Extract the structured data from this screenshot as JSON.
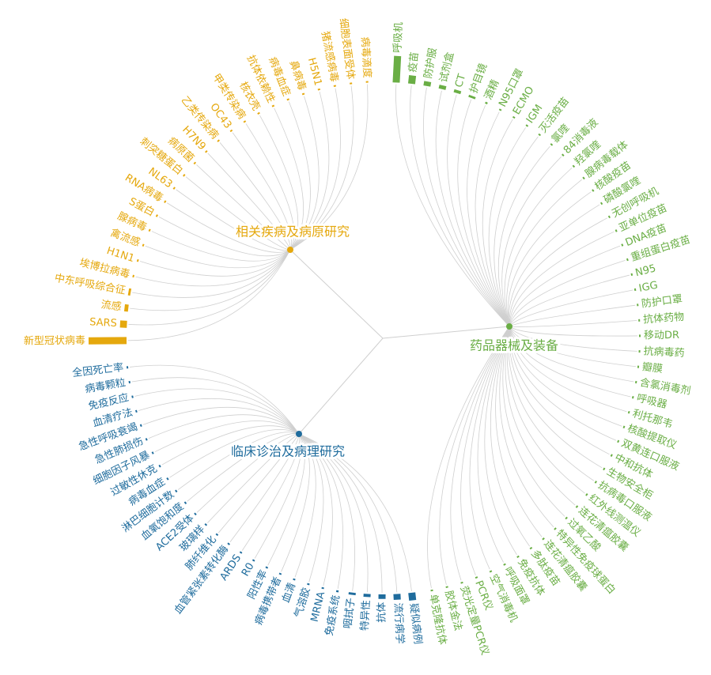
{
  "colors": {
    "gold": "#e5a80d",
    "green": "#6aae45",
    "blue": "#1f6c9d",
    "link": "#cfcfcf"
  },
  "groups": [
    {
      "id": "disease",
      "label": "相关疾病及病原研究",
      "color": "#e5a80d",
      "items": [
        {
          "label": "新型冠状病毒",
          "value": 1.0
        },
        {
          "label": "SARS",
          "value": 0.18
        },
        {
          "label": "流感",
          "value": 0.1
        },
        {
          "label": "中东呼吸综合征",
          "value": 0.06
        },
        {
          "label": "埃博拉病毒",
          "value": 0.03
        },
        {
          "label": "H1N1",
          "value": 0.02
        },
        {
          "label": "禽流感",
          "value": 0.02
        },
        {
          "label": "腺病毒",
          "value": 0.02
        },
        {
          "label": "S蛋白",
          "value": 0.02
        },
        {
          "label": "RNA病毒",
          "value": 0.02
        },
        {
          "label": "NL63",
          "value": 0.02
        },
        {
          "label": "刺突糖蛋白",
          "value": 0.02
        },
        {
          "label": "病原菌",
          "value": 0.02
        },
        {
          "label": "H7N9",
          "value": 0.02
        },
        {
          "label": "乙类传染病",
          "value": 0.02
        },
        {
          "label": "OC43",
          "value": 0.02
        },
        {
          "label": "甲类传染病",
          "value": 0.02
        },
        {
          "label": "核衣壳",
          "value": 0.02
        },
        {
          "label": "抗体依赖性",
          "value": 0.02
        },
        {
          "label": "病毒血症",
          "value": 0.02
        },
        {
          "label": "鼻病毒",
          "value": 0.02
        },
        {
          "label": "H5N1",
          "value": 0.02
        },
        {
          "label": "猪流感病毒",
          "value": 0.02
        },
        {
          "label": "细胞表面受体",
          "value": 0.02
        },
        {
          "label": "病毒滴度",
          "value": 0.02
        }
      ]
    },
    {
      "id": "drugs",
      "label": "药品器械及装备",
      "color": "#6aae45",
      "items": [
        {
          "label": "呼吸机",
          "value": 0.7
        },
        {
          "label": "疫苗",
          "value": 0.22
        },
        {
          "label": "防护服",
          "value": 0.12
        },
        {
          "label": "试剂盒",
          "value": 0.1
        },
        {
          "label": "CT",
          "value": 0.08
        },
        {
          "label": "护目镜",
          "value": 0.06
        },
        {
          "label": "酒精",
          "value": 0.05
        },
        {
          "label": "N95口罩",
          "value": 0.04
        },
        {
          "label": "ECMO",
          "value": 0.04
        },
        {
          "label": "IGM",
          "value": 0.03
        },
        {
          "label": "灭活疫苗",
          "value": 0.03
        },
        {
          "label": "氯喹",
          "value": 0.02
        },
        {
          "label": "84消毒液",
          "value": 0.02
        },
        {
          "label": "羟氯喹",
          "value": 0.02
        },
        {
          "label": "腺病毒载体",
          "value": 0.02
        },
        {
          "label": "核酸疫苗",
          "value": 0.02
        },
        {
          "label": "磷酸氯喹",
          "value": 0.02
        },
        {
          "label": "无创呼吸机",
          "value": 0.02
        },
        {
          "label": "亚单位疫苗",
          "value": 0.02
        },
        {
          "label": "DNA疫苗",
          "value": 0.02
        },
        {
          "label": "重组蛋白疫苗",
          "value": 0.02
        },
        {
          "label": "N95",
          "value": 0.02
        },
        {
          "label": "IGG",
          "value": 0.02
        },
        {
          "label": "防护口罩",
          "value": 0.02
        },
        {
          "label": "抗体药物",
          "value": 0.02
        },
        {
          "label": "移动DR",
          "value": 0.02
        },
        {
          "label": "抗病毒药",
          "value": 0.02
        },
        {
          "label": "瓣膜",
          "value": 0.02
        },
        {
          "label": "含氯消毒剂",
          "value": 0.02
        },
        {
          "label": "呼吸器",
          "value": 0.02
        },
        {
          "label": "利托那韦",
          "value": 0.02
        },
        {
          "label": "核酸提取仪",
          "value": 0.02
        },
        {
          "label": "双黄连口服液",
          "value": 0.02
        },
        {
          "label": "中和抗体",
          "value": 0.02
        },
        {
          "label": "生物安全柜",
          "value": 0.02
        },
        {
          "label": "抗病毒口服液",
          "value": 0.02
        },
        {
          "label": "红外线测温仪",
          "value": 0.02
        },
        {
          "label": "连花清瘟胶囊",
          "value": 0.02
        },
        {
          "label": "过氧乙酸",
          "value": 0.02
        },
        {
          "label": "特异性免疫球蛋白",
          "value": 0.02
        },
        {
          "label": "连花清瘟胶囊",
          "value": 0.02
        },
        {
          "label": "多肽疫苗",
          "value": 0.02
        },
        {
          "label": "免疫抗体",
          "value": 0.02
        },
        {
          "label": "呼吸面罩",
          "value": 0.02
        },
        {
          "label": "空气消毒机",
          "value": 0.02
        },
        {
          "label": "PCR仪",
          "value": 0.02
        },
        {
          "label": "荧光定量PCR仪",
          "value": 0.02
        },
        {
          "label": "胶体金法",
          "value": 0.02
        },
        {
          "label": "单克隆抗体",
          "value": 0.02
        }
      ]
    },
    {
      "id": "clinical",
      "label": "临床诊治及病理研究",
      "color": "#1f6c9d",
      "items": [
        {
          "label": "疑似病例",
          "value": 0.2
        },
        {
          "label": "流行病学",
          "value": 0.15
        },
        {
          "label": "抗体",
          "value": 0.12
        },
        {
          "label": "特异性",
          "value": 0.08
        },
        {
          "label": "咽拭子",
          "value": 0.06
        },
        {
          "label": "免疫系统",
          "value": 0.05
        },
        {
          "label": "MRNA",
          "value": 0.04
        },
        {
          "label": "气溶胶",
          "value": 0.03
        },
        {
          "label": "血清",
          "value": 0.02
        },
        {
          "label": "病毒携带者",
          "value": 0.02
        },
        {
          "label": "阳性率",
          "value": 0.02
        },
        {
          "label": "R0",
          "value": 0.02
        },
        {
          "label": "ARDS",
          "value": 0.02
        },
        {
          "label": "血管紧张素转化酶",
          "value": 0.02
        },
        {
          "label": "肺纤维化",
          "value": 0.02
        },
        {
          "label": "玻璃样",
          "value": 0.02
        },
        {
          "label": "ACE2受体",
          "value": 0.02
        },
        {
          "label": "血氧饱和度",
          "value": 0.02
        },
        {
          "label": "淋巴细胞计数",
          "value": 0.02
        },
        {
          "label": "病毒血症",
          "value": 0.02
        },
        {
          "label": "过敏性休克",
          "value": 0.02
        },
        {
          "label": "细胞因子风暴",
          "value": 0.02
        },
        {
          "label": "急性肺损伤",
          "value": 0.02
        },
        {
          "label": "急性呼吸衰竭",
          "value": 0.02
        },
        {
          "label": "血清疗法",
          "value": 0.02
        },
        {
          "label": "免疫反应",
          "value": 0.02
        },
        {
          "label": "病毒颗粒",
          "value": 0.02
        },
        {
          "label": "全因死亡率",
          "value": 0.02
        }
      ]
    }
  ]
}
